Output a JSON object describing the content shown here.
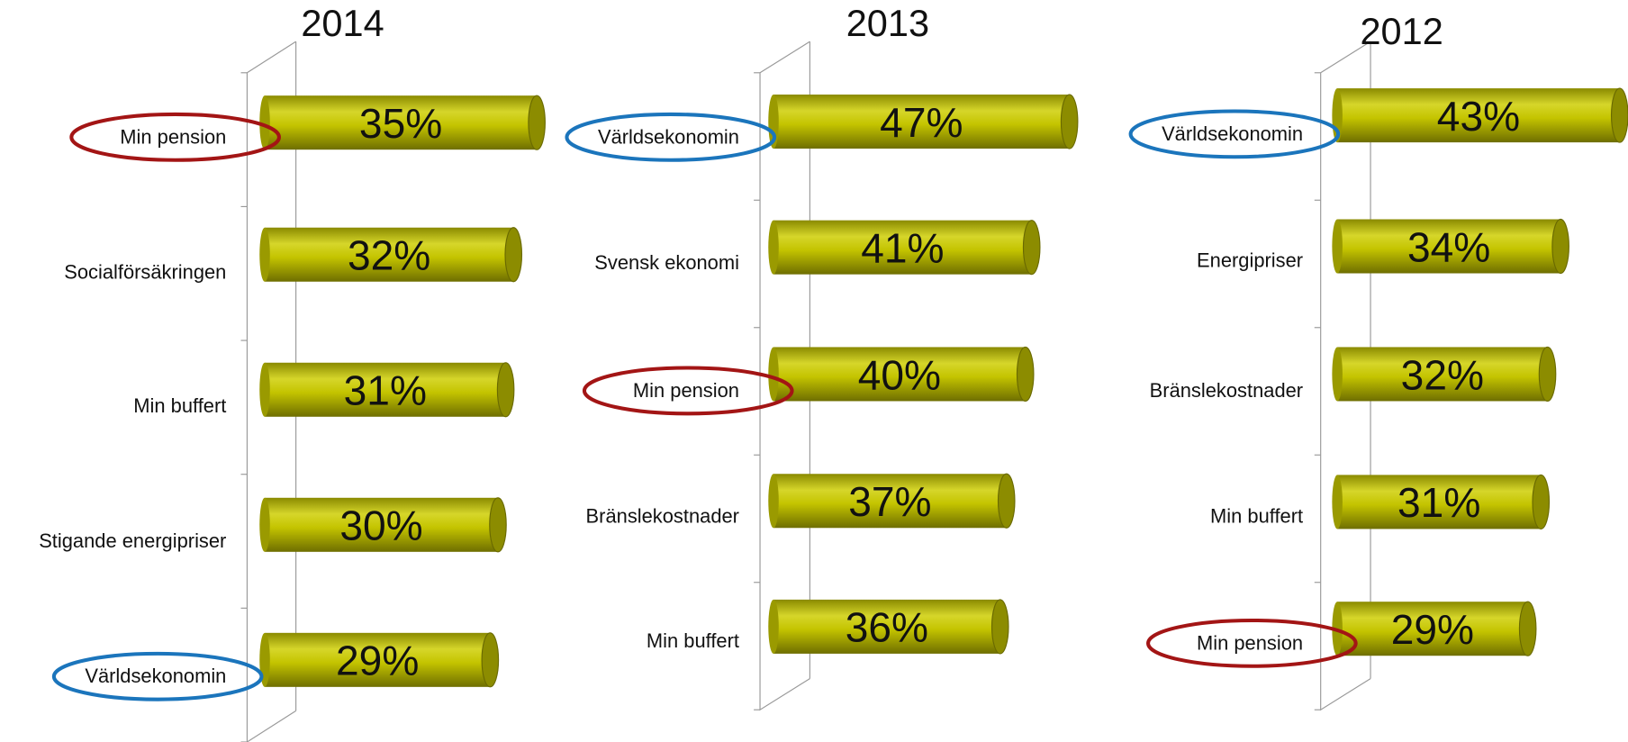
{
  "chart_data": [
    {
      "type": "bar",
      "title": "2014",
      "color": "#b8b800",
      "categories": [
        "Min pension",
        "Socialförsäkringen",
        "Min buffert",
        "Stigande energipriser",
        "Världsekonomin"
      ],
      "values": [
        35,
        32,
        31,
        30,
        29
      ],
      "value_labels": [
        "35%",
        "32%",
        "31%",
        "30%",
        "29%"
      ]
    },
    {
      "type": "bar",
      "title": "2013",
      "color": "#b8b800",
      "categories": [
        "Världsekonomin",
        "Svensk ekonomi",
        "Min pension",
        "Bränslekostnader",
        "Min buffert"
      ],
      "values": [
        47,
        41,
        40,
        37,
        36
      ],
      "value_labels": [
        "47%",
        "41%",
        "40%",
        "37%",
        "36%"
      ]
    },
    {
      "type": "bar",
      "title": "2012",
      "color": "#b8b800",
      "categories": [
        "Världsekonomin",
        "Energipriser",
        "Bränslekostnader",
        "Min buffert",
        "Min pension"
      ],
      "values": [
        43,
        34,
        32,
        31,
        29
      ],
      "value_labels": [
        "43%",
        "34%",
        "32%",
        "31%",
        "29%"
      ]
    }
  ],
  "highlight_color": {
    "Min pension": "#a31515",
    "Världsekonomin": "#1b75bc"
  }
}
